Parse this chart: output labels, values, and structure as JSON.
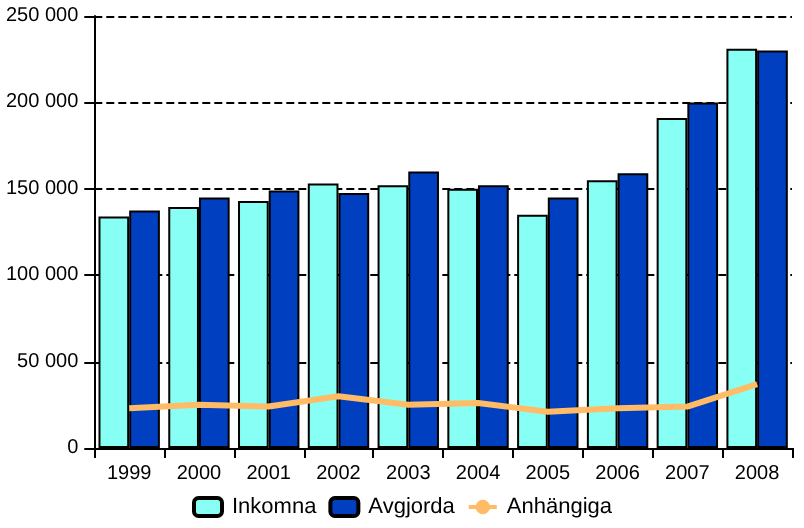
{
  "chart_data": {
    "type": "bar",
    "categories": [
      "1999",
      "2000",
      "2001",
      "2002",
      "2003",
      "2004",
      "2005",
      "2006",
      "2007",
      "2008"
    ],
    "series": [
      {
        "name": "Inkomna",
        "color": "#88fff4",
        "values": [
          134000,
          139500,
          143000,
          153000,
          152000,
          150000,
          135000,
          155000,
          191000,
          231000
        ]
      },
      {
        "name": "Avgjorda",
        "color": "#0040c0",
        "values": [
          137500,
          145000,
          149000,
          147500,
          160000,
          152000,
          145000,
          159000,
          200000,
          230000
        ]
      },
      {
        "name": "Anhängiga",
        "type": "line",
        "color": "#ffbb66",
        "values": [
          23000,
          25000,
          24000,
          30000,
          25000,
          26000,
          21000,
          23000,
          24000,
          37000
        ]
      }
    ],
    "ylim": [
      0,
      250000
    ],
    "yticks": [
      0,
      50000,
      100000,
      150000,
      200000,
      250000
    ],
    "grid": "y",
    "legend": "bottom",
    "marker": "none"
  }
}
